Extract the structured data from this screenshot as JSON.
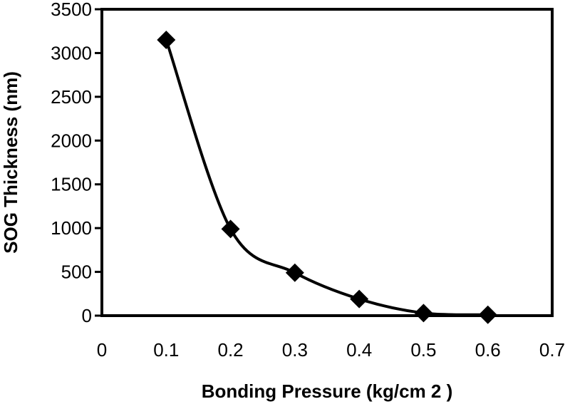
{
  "chart_data": {
    "type": "scatter",
    "title": "",
    "xlabel": "Bonding Pressure (kg/cm 2 )",
    "ylabel": "SOG Thickness (nm)",
    "xlim": [
      0,
      0.7
    ],
    "ylim": [
      0,
      3500
    ],
    "x_ticks": [
      "0",
      "0.1",
      "0.2",
      "0.3",
      "0.4",
      "0.5",
      "0.6",
      "0.7"
    ],
    "y_ticks": [
      "0",
      "500",
      "1000",
      "1500",
      "2000",
      "2500",
      "3000",
      "3500"
    ],
    "grid": false,
    "legend": "none",
    "marker": "diamond",
    "trendline": "smooth curve",
    "series": [
      {
        "x": [
          0.1,
          0.2,
          0.3,
          0.4,
          0.5,
          0.6
        ],
        "y": [
          3150,
          990,
          490,
          190,
          30,
          10
        ]
      }
    ],
    "colors": {
      "marker": "#000000",
      "line": "#000000",
      "axes": "#000000"
    }
  }
}
